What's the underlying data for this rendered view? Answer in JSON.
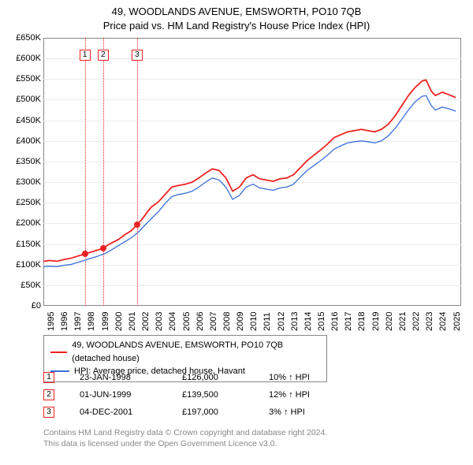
{
  "title": {
    "line1": "49, WOODLANDS AVENUE, EMSWORTH, PO10 7QB",
    "line2": "Price paid vs. HM Land Registry's House Price Index (HPI)",
    "fontsize": 13,
    "color": "#000000"
  },
  "chart": {
    "type": "line",
    "background_color": "#ffffff",
    "border_color": "#888888",
    "grid_color": "#d8d8d8",
    "xlim": [
      1995,
      2025.9
    ],
    "ylim": [
      0,
      650000
    ],
    "ytick_step": 50000,
    "yticks": [
      "£0",
      "£50K",
      "£100K",
      "£150K",
      "£200K",
      "£250K",
      "£300K",
      "£350K",
      "£400K",
      "£450K",
      "£500K",
      "£550K",
      "£600K",
      "£650K"
    ],
    "xticks": [
      "1995",
      "1996",
      "1997",
      "1998",
      "1999",
      "2000",
      "2001",
      "2002",
      "2003",
      "2004",
      "2005",
      "2006",
      "2007",
      "2008",
      "2009",
      "2010",
      "2011",
      "2012",
      "2013",
      "2014",
      "2015",
      "2016",
      "2017",
      "2018",
      "2019",
      "2020",
      "2021",
      "2022",
      "2023",
      "2024",
      "2025"
    ],
    "series": [
      {
        "name": "49, WOODLANDS AVENUE, EMSWORTH, PO10 7QB (detached house)",
        "color": "#ee2222",
        "line_width": 1.8,
        "data": [
          [
            1995.0,
            108000
          ],
          [
            1995.5,
            110000
          ],
          [
            1996.0,
            108000
          ],
          [
            1996.5,
            112000
          ],
          [
            1997.0,
            115000
          ],
          [
            1997.5,
            120000
          ],
          [
            1998.07,
            126000
          ],
          [
            1998.5,
            130000
          ],
          [
            1999.0,
            135000
          ],
          [
            1999.42,
            139500
          ],
          [
            1999.8,
            148000
          ],
          [
            2000.2,
            155000
          ],
          [
            2000.6,
            162000
          ],
          [
            2001.0,
            172000
          ],
          [
            2001.5,
            182000
          ],
          [
            2001.93,
            197000
          ],
          [
            2002.3,
            210000
          ],
          [
            2002.7,
            228000
          ],
          [
            2003.0,
            240000
          ],
          [
            2003.5,
            252000
          ],
          [
            2004.0,
            270000
          ],
          [
            2004.5,
            288000
          ],
          [
            2005.0,
            292000
          ],
          [
            2005.5,
            295000
          ],
          [
            2006.0,
            300000
          ],
          [
            2006.5,
            310000
          ],
          [
            2007.0,
            322000
          ],
          [
            2007.5,
            332000
          ],
          [
            2008.0,
            328000
          ],
          [
            2008.5,
            310000
          ],
          [
            2009.0,
            278000
          ],
          [
            2009.5,
            288000
          ],
          [
            2010.0,
            310000
          ],
          [
            2010.5,
            318000
          ],
          [
            2011.0,
            308000
          ],
          [
            2011.5,
            305000
          ],
          [
            2012.0,
            302000
          ],
          [
            2012.5,
            308000
          ],
          [
            2013.0,
            310000
          ],
          [
            2013.5,
            318000
          ],
          [
            2014.0,
            335000
          ],
          [
            2014.5,
            352000
          ],
          [
            2015.0,
            365000
          ],
          [
            2015.5,
            378000
          ],
          [
            2016.0,
            392000
          ],
          [
            2016.5,
            408000
          ],
          [
            2017.0,
            415000
          ],
          [
            2017.5,
            422000
          ],
          [
            2018.0,
            425000
          ],
          [
            2018.5,
            428000
          ],
          [
            2019.0,
            425000
          ],
          [
            2019.5,
            422000
          ],
          [
            2020.0,
            428000
          ],
          [
            2020.5,
            440000
          ],
          [
            2021.0,
            460000
          ],
          [
            2021.5,
            485000
          ],
          [
            2022.0,
            510000
          ],
          [
            2022.5,
            530000
          ],
          [
            2023.0,
            545000
          ],
          [
            2023.3,
            548000
          ],
          [
            2023.7,
            520000
          ],
          [
            2024.0,
            510000
          ],
          [
            2024.5,
            518000
          ],
          [
            2025.0,
            512000
          ],
          [
            2025.5,
            505000
          ]
        ]
      },
      {
        "name": "HPI: Average price, detached house, Havant",
        "color": "#3a6fd8",
        "line_width": 1.3,
        "data": [
          [
            1995.0,
            95000
          ],
          [
            1995.5,
            96000
          ],
          [
            1996.0,
            95000
          ],
          [
            1996.5,
            98000
          ],
          [
            1997.0,
            100000
          ],
          [
            1997.5,
            105000
          ],
          [
            1998.0,
            110000
          ],
          [
            1998.5,
            115000
          ],
          [
            1999.0,
            120000
          ],
          [
            1999.5,
            126000
          ],
          [
            2000.0,
            135000
          ],
          [
            2000.5,
            145000
          ],
          [
            2001.0,
            155000
          ],
          [
            2001.5,
            165000
          ],
          [
            2002.0,
            178000
          ],
          [
            2002.5,
            195000
          ],
          [
            2003.0,
            212000
          ],
          [
            2003.5,
            228000
          ],
          [
            2004.0,
            248000
          ],
          [
            2004.5,
            265000
          ],
          [
            2005.0,
            270000
          ],
          [
            2005.5,
            273000
          ],
          [
            2006.0,
            278000
          ],
          [
            2006.5,
            288000
          ],
          [
            2007.0,
            300000
          ],
          [
            2007.5,
            310000
          ],
          [
            2008.0,
            305000
          ],
          [
            2008.5,
            288000
          ],
          [
            2009.0,
            258000
          ],
          [
            2009.5,
            268000
          ],
          [
            2010.0,
            288000
          ],
          [
            2010.5,
            295000
          ],
          [
            2011.0,
            286000
          ],
          [
            2011.5,
            283000
          ],
          [
            2012.0,
            280000
          ],
          [
            2012.5,
            286000
          ],
          [
            2013.0,
            288000
          ],
          [
            2013.5,
            295000
          ],
          [
            2014.0,
            312000
          ],
          [
            2014.5,
            328000
          ],
          [
            2015.0,
            340000
          ],
          [
            2015.5,
            352000
          ],
          [
            2016.0,
            365000
          ],
          [
            2016.5,
            380000
          ],
          [
            2017.0,
            388000
          ],
          [
            2017.5,
            395000
          ],
          [
            2018.0,
            398000
          ],
          [
            2018.5,
            400000
          ],
          [
            2019.0,
            398000
          ],
          [
            2019.5,
            395000
          ],
          [
            2020.0,
            400000
          ],
          [
            2020.5,
            412000
          ],
          [
            2021.0,
            430000
          ],
          [
            2021.5,
            452000
          ],
          [
            2022.0,
            475000
          ],
          [
            2022.5,
            495000
          ],
          [
            2023.0,
            508000
          ],
          [
            2023.3,
            510000
          ],
          [
            2023.7,
            485000
          ],
          [
            2024.0,
            475000
          ],
          [
            2024.5,
            482000
          ],
          [
            2025.0,
            478000
          ],
          [
            2025.5,
            472000
          ]
        ]
      }
    ],
    "reference_lines": [
      {
        "x": 1998.07,
        "label": "1",
        "color": "#ee2222"
      },
      {
        "x": 1999.42,
        "label": "2",
        "color": "#ee2222"
      },
      {
        "x": 2001.93,
        "label": "3",
        "color": "#ee2222"
      }
    ],
    "markers": [
      {
        "x": 1998.07,
        "y": 126000,
        "color": "#ee2222"
      },
      {
        "x": 1999.42,
        "y": 139500,
        "color": "#ee2222"
      },
      {
        "x": 2001.93,
        "y": 197000,
        "color": "#ee2222"
      }
    ]
  },
  "legend": {
    "border_color": "#888888",
    "fontsize": 11,
    "items": [
      {
        "color": "#ee2222",
        "label": "49, WOODLANDS AVENUE, EMSWORTH, PO10 7QB (detached house)"
      },
      {
        "color": "#3a6fd8",
        "label": "HPI: Average price, detached house, Havant"
      }
    ]
  },
  "transactions": {
    "box_color": "#ee2222",
    "rows": [
      {
        "num": "1",
        "date": "23-JAN-1998",
        "price": "£126,000",
        "delta": "10% ↑ HPI"
      },
      {
        "num": "2",
        "date": "01-JUN-1999",
        "price": "£139,500",
        "delta": "12% ↑ HPI"
      },
      {
        "num": "3",
        "date": "04-DEC-2001",
        "price": "£197,000",
        "delta": "3% ↑ HPI"
      }
    ]
  },
  "footer": {
    "line1": "Contains HM Land Registry data © Crown copyright and database right 2024.",
    "line2": "This data is licensed under the Open Government Licence v3.0.",
    "color": "#888888",
    "fontsize": 10.5
  }
}
